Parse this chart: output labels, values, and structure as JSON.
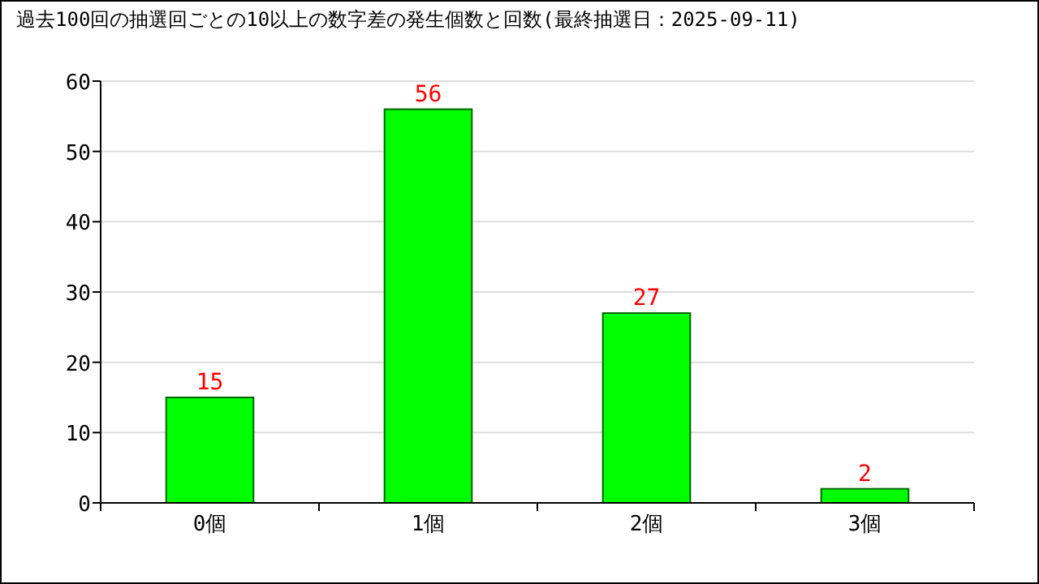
{
  "chart_data": {
    "type": "bar",
    "title": "過去100回の抽選回ごとの10以上の数字差の発生個数と回数(最終抽選日：2025-09-11)",
    "categories": [
      "0個",
      "1個",
      "2個",
      "3個"
    ],
    "values": [
      15,
      56,
      27,
      2
    ],
    "color": "#00ff00",
    "ylim": [
      0,
      60
    ],
    "yticks": [
      0,
      10,
      20,
      30,
      40,
      50,
      60
    ],
    "grid": "y",
    "data_labels": true
  }
}
